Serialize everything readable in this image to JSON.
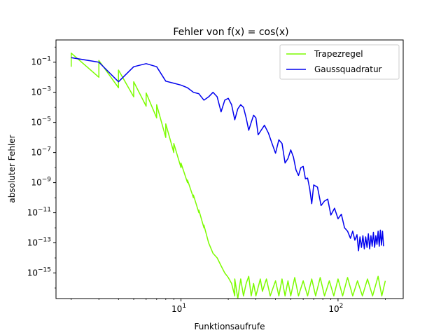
{
  "chart_data": {
    "type": "line",
    "title": "Fehler von f(x) = cos(x)",
    "xlabel": "Funktionsaufrufe",
    "ylabel": "absoluter Fehler",
    "xscale": "log",
    "yscale": "log",
    "xlim": [
      1.6,
      260
    ],
    "ylim": [
      2e-17,
      3
    ],
    "xticks": [
      {
        "value": 10,
        "base": "10",
        "exp": "1"
      },
      {
        "value": 100,
        "base": "10",
        "exp": "2"
      }
    ],
    "yticks": [
      {
        "value": 0.1,
        "base": "10",
        "exp": "−1"
      },
      {
        "value": 0.001,
        "base": "10",
        "exp": "−3"
      },
      {
        "value": 1e-05,
        "base": "10",
        "exp": "−5"
      },
      {
        "value": 1e-07,
        "base": "10",
        "exp": "−7"
      },
      {
        "value": 1e-09,
        "base": "10",
        "exp": "−9"
      },
      {
        "value": 1e-11,
        "base": "10",
        "exp": "−11"
      },
      {
        "value": 1e-13,
        "base": "10",
        "exp": "−13"
      },
      {
        "value": 1e-15,
        "base": "10",
        "exp": "−15"
      }
    ],
    "legend_position": "top-right",
    "grid": false,
    "series": [
      {
        "name": "Trapezregel",
        "color": "#7cfc00",
        "points": [
          [
            2,
            0.05
          ],
          [
            2,
            0.4
          ],
          [
            3,
            0.01
          ],
          [
            3,
            0.13
          ],
          [
            4,
            0.002
          ],
          [
            4,
            0.03
          ],
          [
            5,
            0.0005
          ],
          [
            5,
            0.005
          ],
          [
            6,
            0.00012
          ],
          [
            6,
            0.0009
          ],
          [
            7,
            2e-05
          ],
          [
            7,
            0.00015
          ],
          [
            8,
            1e-06
          ],
          [
            8,
            8e-06
          ],
          [
            9,
            1e-07
          ],
          [
            9,
            4e-07
          ],
          [
            10,
            1e-08
          ],
          [
            10,
            2e-08
          ],
          [
            11,
            1e-09
          ],
          [
            11,
            1.5e-09
          ],
          [
            12,
            1e-10
          ],
          [
            12,
            1.5e-10
          ],
          [
            13,
            1e-11
          ],
          [
            13,
            1.5e-11
          ],
          [
            14,
            1e-12
          ],
          [
            14,
            1.5e-12
          ],
          [
            15,
            1e-13
          ],
          [
            16,
            2e-14
          ],
          [
            17,
            1e-14
          ],
          [
            18,
            3e-15
          ],
          [
            19,
            1e-15
          ],
          [
            20,
            5e-16
          ],
          [
            21,
            2e-16
          ],
          [
            22,
            3e-17
          ],
          [
            22,
            4e-16
          ],
          [
            23,
            2e-17
          ],
          [
            24,
            4e-16
          ],
          [
            25,
            3e-17
          ],
          [
            26,
            2e-16
          ],
          [
            27,
            6e-16
          ],
          [
            28,
            3e-17
          ],
          [
            29,
            2e-16
          ],
          [
            30,
            3e-17
          ],
          [
            32,
            4e-16
          ],
          [
            33,
            6e-17
          ],
          [
            35,
            4e-16
          ],
          [
            37,
            3e-17
          ],
          [
            40,
            3e-16
          ],
          [
            42,
            3e-17
          ],
          [
            44,
            4e-16
          ],
          [
            46,
            3e-17
          ],
          [
            48,
            3e-16
          ],
          [
            50,
            3e-17
          ],
          [
            53,
            5e-16
          ],
          [
            56,
            3e-17
          ],
          [
            60,
            3e-16
          ],
          [
            64,
            3e-17
          ],
          [
            68,
            4e-16
          ],
          [
            72,
            3e-17
          ],
          [
            77,
            5e-16
          ],
          [
            82,
            3e-17
          ],
          [
            88,
            3e-16
          ],
          [
            94,
            3e-17
          ],
          [
            100,
            4e-16
          ],
          [
            107,
            3e-17
          ],
          [
            115,
            5e-16
          ],
          [
            124,
            3e-17
          ],
          [
            133,
            3e-16
          ],
          [
            143,
            3e-17
          ],
          [
            154,
            4e-16
          ],
          [
            166,
            3e-17
          ],
          [
            180,
            6e-16
          ],
          [
            190,
            3e-17
          ],
          [
            200,
            3e-16
          ]
        ]
      },
      {
        "name": "Gaussquadratur",
        "color": "#0000ee",
        "points": [
          [
            2,
            0.2
          ],
          [
            3,
            0.1
          ],
          [
            4,
            0.005
          ],
          [
            5,
            0.05
          ],
          [
            6,
            0.08
          ],
          [
            7,
            0.05
          ],
          [
            8,
            0.0055
          ],
          [
            9,
            0.004
          ],
          [
            10,
            0.003
          ],
          [
            11,
            0.002
          ],
          [
            12,
            0.001
          ],
          [
            13,
            0.0008
          ],
          [
            14,
            0.0003
          ],
          [
            15,
            0.0005
          ],
          [
            16,
            0.001
          ],
          [
            17,
            0.0005
          ],
          [
            18,
            5e-05
          ],
          [
            19,
            0.0003
          ],
          [
            20,
            0.0004
          ],
          [
            21,
            0.00015
          ],
          [
            22,
            1.5e-05
          ],
          [
            23,
            8e-05
          ],
          [
            24,
            0.00015
          ],
          [
            25,
            0.0001
          ],
          [
            26,
            2e-05
          ],
          [
            27,
            3e-06
          ],
          [
            28,
            1e-05
          ],
          [
            29,
            3e-05
          ],
          [
            30,
            2e-05
          ],
          [
            31,
            1.5e-06
          ],
          [
            32,
            2.5e-06
          ],
          [
            34,
            6.5e-06
          ],
          [
            36,
            2e-06
          ],
          [
            38,
            4e-07
          ],
          [
            40,
            9e-08
          ],
          [
            42,
            7e-07
          ],
          [
            44,
            4e-07
          ],
          [
            46,
            2e-08
          ],
          [
            48,
            4e-08
          ],
          [
            50,
            1.5e-07
          ],
          [
            52,
            5e-08
          ],
          [
            54,
            7e-09
          ],
          [
            56,
            3e-09
          ],
          [
            58,
            1e-08
          ],
          [
            60,
            1.2e-08
          ],
          [
            62,
            1.8e-09
          ],
          [
            64,
            2e-09
          ],
          [
            66,
            4e-10
          ],
          [
            68,
            4e-11
          ],
          [
            70,
            7e-10
          ],
          [
            74,
            5e-10
          ],
          [
            78,
            3e-11
          ],
          [
            82,
            6e-11
          ],
          [
            86,
            8e-11
          ],
          [
            90,
            7e-12
          ],
          [
            95,
            2e-11
          ],
          [
            100,
            4e-12
          ],
          [
            105,
            8e-12
          ],
          [
            110,
            1e-12
          ],
          [
            115,
            6e-13
          ],
          [
            120,
            2e-13
          ],
          [
            124,
            6e-13
          ],
          [
            128,
            1.5e-13
          ],
          [
            132,
            3.5e-13
          ],
          [
            135,
            3e-14
          ],
          [
            138,
            2.5e-13
          ],
          [
            141,
            5e-14
          ],
          [
            144,
            3e-13
          ],
          [
            147,
            4e-14
          ],
          [
            150,
            2.5e-13
          ],
          [
            153,
            5e-14
          ],
          [
            156,
            4e-13
          ],
          [
            159,
            4e-14
          ],
          [
            162,
            3e-13
          ],
          [
            165,
            6e-14
          ],
          [
            168,
            5e-13
          ],
          [
            171,
            5e-14
          ],
          [
            174,
            3e-13
          ],
          [
            177,
            8e-14
          ],
          [
            180,
            6e-13
          ],
          [
            183,
            6e-14
          ],
          [
            186,
            7e-13
          ],
          [
            189,
            7e-14
          ],
          [
            192,
            6e-13
          ],
          [
            195,
            6e-14
          ]
        ]
      }
    ]
  }
}
